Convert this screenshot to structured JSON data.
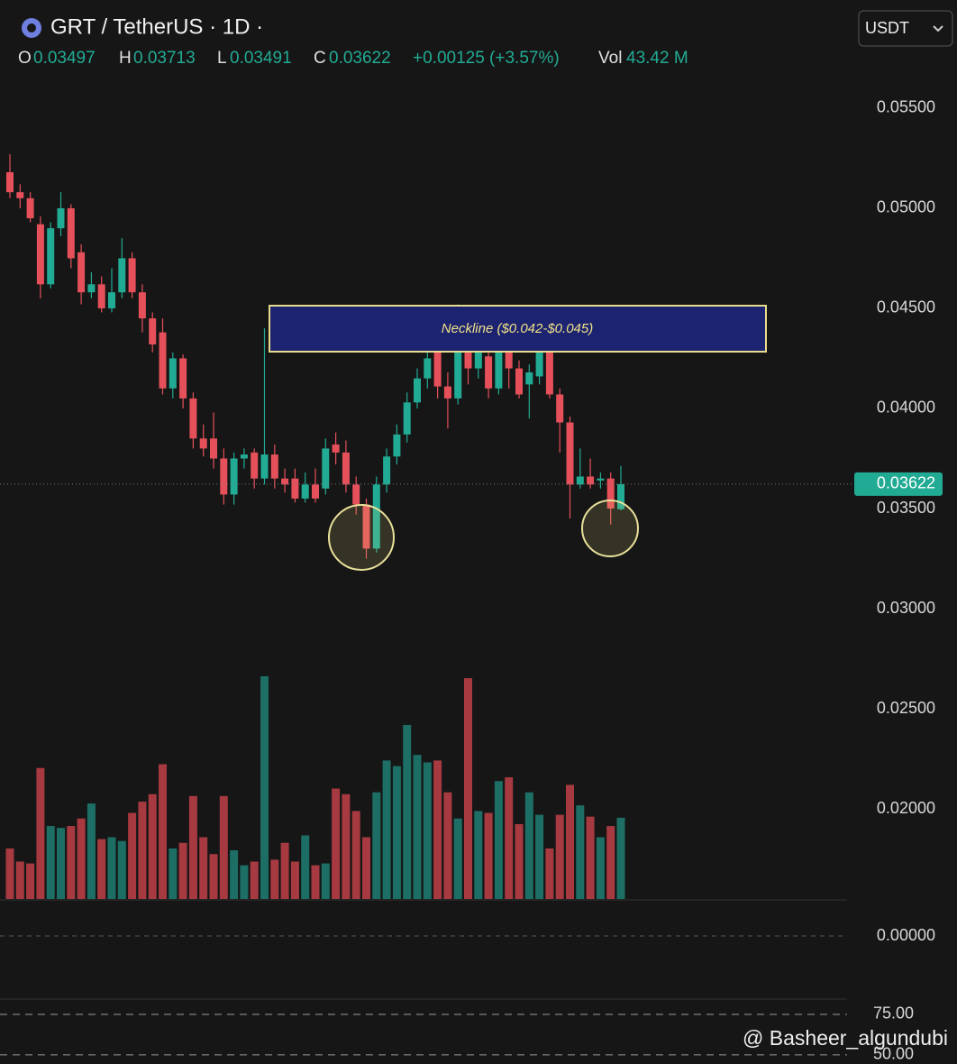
{
  "chart_data": {
    "type": "candlestick",
    "title": "GRT / TetherUS · 1D ·",
    "ohlc_row": {
      "o_label": "O",
      "o": "0.03497",
      "h_label": "H",
      "h": "0.03713",
      "l_label": "L",
      "l": "0.03491",
      "c_label": "C",
      "c": "0.03622",
      "change": "+0.00125 (+3.57%)",
      "vol_label": "Vol",
      "vol": "43.42 M"
    },
    "currency": "USDT",
    "annotation": "Neckline ($0.042-$0.045)",
    "watermark": "@ Basheer_algundubi",
    "last_price": 0.03622,
    "up_color": "#22ab94",
    "down_color": "#e5505a",
    "up_volume_color": "#1d6e64",
    "down_volume_color": "#a63a40",
    "open": [
      0.0518,
      0.0508,
      0.0505,
      0.0492,
      0.0462,
      0.049,
      0.05,
      0.0478,
      0.0458,
      0.0462,
      0.045,
      0.0458,
      0.0475,
      0.0458,
      0.0445,
      0.0438,
      0.041,
      0.0425,
      0.0405,
      0.0385,
      0.0385,
      0.0375,
      0.0357,
      0.0375,
      0.0378,
      0.0365,
      0.0377,
      0.0365,
      0.0365,
      0.0355,
      0.0362,
      0.036,
      0.0382,
      0.0378,
      0.0362,
      0.0352,
      0.033,
      0.0362,
      0.0376,
      0.0387,
      0.0403,
      0.0415,
      0.0428,
      0.0411,
      0.0405,
      0.0428,
      0.042,
      0.0426,
      0.041,
      0.0438,
      0.042,
      0.0412,
      0.0416,
      0.0428,
      0.0407,
      0.0393,
      0.0362,
      0.0366,
      0.0364,
      0.0365,
      0.03497
    ],
    "high": [
      0.0527,
      0.0512,
      0.0508,
      0.0496,
      0.0493,
      0.0508,
      0.0502,
      0.0482,
      0.0468,
      0.0466,
      0.047,
      0.0485,
      0.0478,
      0.0462,
      0.0448,
      0.0445,
      0.0428,
      0.0427,
      0.0408,
      0.0392,
      0.0398,
      0.038,
      0.0378,
      0.038,
      0.038,
      0.044,
      0.0382,
      0.037,
      0.037,
      0.0368,
      0.037,
      0.0385,
      0.0388,
      0.0384,
      0.0366,
      0.0355,
      0.0366,
      0.038,
      0.0392,
      0.0408,
      0.042,
      0.044,
      0.0432,
      0.0418,
      0.0452,
      0.0434,
      0.0436,
      0.043,
      0.0445,
      0.0443,
      0.0424,
      0.0422,
      0.0448,
      0.043,
      0.041,
      0.0396,
      0.038,
      0.0375,
      0.0368,
      0.0368,
      0.03713
    ],
    "low": [
      0.0505,
      0.05,
      0.0493,
      0.0455,
      0.046,
      0.0486,
      0.047,
      0.0452,
      0.0455,
      0.0448,
      0.0448,
      0.0455,
      0.0455,
      0.0438,
      0.0428,
      0.0407,
      0.0405,
      0.04,
      0.038,
      0.0376,
      0.037,
      0.0352,
      0.0352,
      0.037,
      0.036,
      0.0362,
      0.036,
      0.0358,
      0.0353,
      0.0353,
      0.0353,
      0.0357,
      0.0372,
      0.0358,
      0.0347,
      0.0325,
      0.0328,
      0.0358,
      0.0372,
      0.0383,
      0.04,
      0.041,
      0.0405,
      0.039,
      0.0402,
      0.0412,
      0.0415,
      0.0405,
      0.0407,
      0.041,
      0.0405,
      0.0395,
      0.0412,
      0.0405,
      0.0378,
      0.0345,
      0.036,
      0.036,
      0.036,
      0.0342,
      0.03491
    ],
    "close": [
      0.0508,
      0.0505,
      0.0495,
      0.0462,
      0.049,
      0.05,
      0.0475,
      0.0458,
      0.0462,
      0.045,
      0.0458,
      0.0475,
      0.0458,
      0.0445,
      0.0432,
      0.041,
      0.0425,
      0.0405,
      0.0385,
      0.038,
      0.0375,
      0.0357,
      0.0375,
      0.0377,
      0.0365,
      0.0377,
      0.0365,
      0.0362,
      0.0355,
      0.0362,
      0.0355,
      0.038,
      0.0378,
      0.0362,
      0.0352,
      0.033,
      0.0362,
      0.0376,
      0.0387,
      0.0403,
      0.0415,
      0.0425,
      0.0411,
      0.0405,
      0.0428,
      0.042,
      0.0428,
      0.041,
      0.044,
      0.042,
      0.0407,
      0.0418,
      0.0428,
      0.0407,
      0.0393,
      0.0362,
      0.0366,
      0.0362,
      0.0365,
      0.035,
      0.03622
    ],
    "volume": [
      27,
      20,
      19,
      70,
      39,
      38,
      39,
      43,
      51,
      32,
      33,
      31,
      46,
      52,
      56,
      72,
      27,
      30,
      55,
      33,
      24,
      55,
      26,
      18,
      20,
      119,
      21,
      30,
      20,
      34,
      18,
      19,
      59,
      56,
      47,
      33,
      57,
      74,
      71,
      93,
      77,
      73,
      74,
      57,
      43,
      118,
      47,
      46,
      63,
      65,
      40,
      57,
      45,
      27,
      45,
      61,
      50,
      44,
      33,
      39,
      43.42
    ],
    "ylim": [
      0.0155,
      0.0604
    ],
    "yticks": [
      {
        "value": 0.055,
        "label": "0.05500"
      },
      {
        "value": 0.05,
        "label": "0.05000"
      },
      {
        "value": 0.045,
        "label": "0.04500"
      },
      {
        "value": 0.04,
        "label": "0.04000"
      },
      {
        "value": 0.035,
        "label": "0.03500"
      },
      {
        "value": 0.03,
        "label": "0.03000"
      },
      {
        "value": 0.025,
        "label": "0.02500"
      },
      {
        "value": 0.02,
        "label": "0.02000"
      }
    ],
    "macd_yticks": [
      {
        "value": 0,
        "label": "0.00000"
      }
    ],
    "rsi_ylim": [
      44.4,
      88.9
    ],
    "rsi_yticks": [
      {
        "value": 75,
        "label": "75.00"
      },
      {
        "value": 50,
        "label": "50.00"
      }
    ]
  }
}
